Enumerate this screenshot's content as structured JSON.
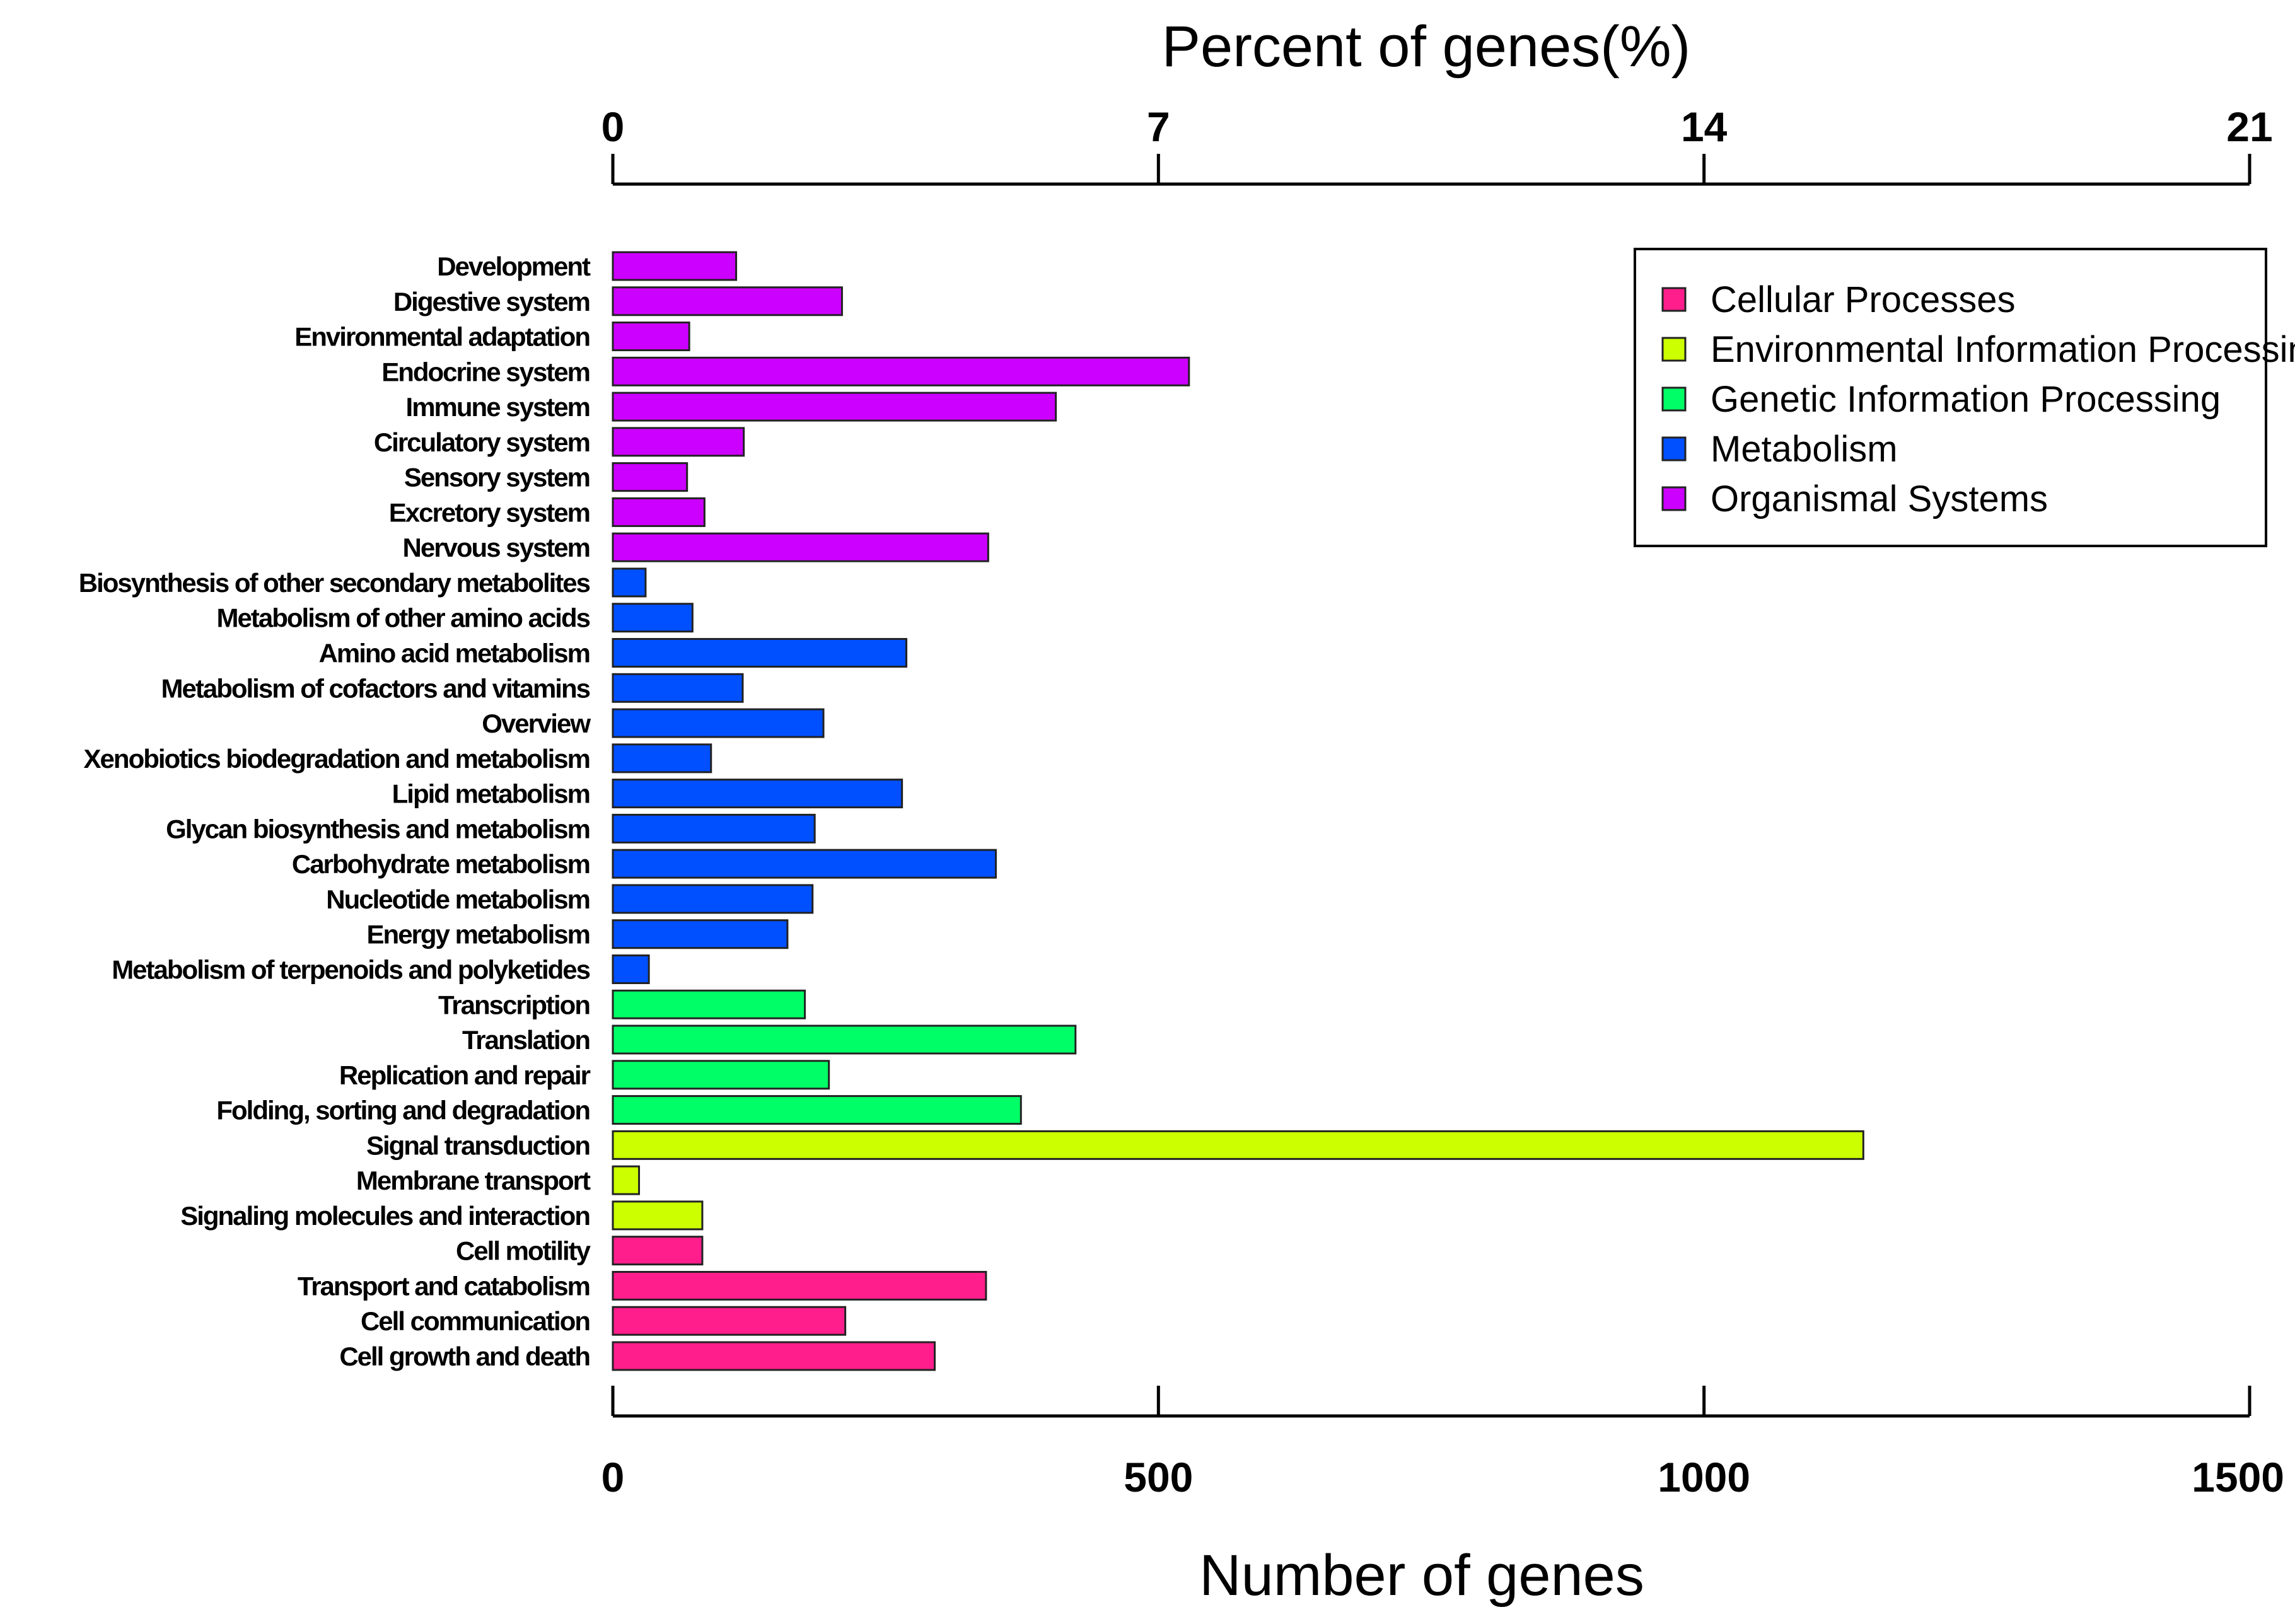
{
  "chart_data": {
    "type": "bar",
    "orientation": "horizontal",
    "title": "",
    "top_axis": {
      "title": "Percent of genes(%)",
      "ticks": [
        "0",
        "7",
        "14",
        "21"
      ],
      "range": [
        0,
        21
      ]
    },
    "bottom_axis": {
      "title": "Number of genes",
      "ticks": [
        "0",
        "500",
        "1000",
        "1500"
      ],
      "range": [
        0,
        1500
      ]
    },
    "legend": {
      "placement": "top-right",
      "entries": [
        {
          "name": "Cellular Processes",
          "color": "#ff1e8c"
        },
        {
          "name": "Environmental Information Processing",
          "color": "#ccff00"
        },
        {
          "name": "Genetic Information Processing",
          "color": "#00ff66"
        },
        {
          "name": "Metabolism",
          "color": "#0050ff"
        },
        {
          "name": "Organismal Systems",
          "color": "#cc00ff"
        }
      ]
    },
    "bars": [
      {
        "label": "Development",
        "value": 113,
        "group": "Organismal Systems"
      },
      {
        "label": "Digestive system",
        "value": 210,
        "group": "Organismal Systems"
      },
      {
        "label": "Environmental adaptation",
        "value": 70,
        "group": "Organismal Systems"
      },
      {
        "label": "Endocrine system",
        "value": 528,
        "group": "Organismal Systems"
      },
      {
        "label": "Immune system",
        "value": 406,
        "group": "Organismal Systems"
      },
      {
        "label": "Circulatory system",
        "value": 120,
        "group": "Organismal Systems"
      },
      {
        "label": "Sensory system",
        "value": 68,
        "group": "Organismal Systems"
      },
      {
        "label": "Excretory system",
        "value": 84,
        "group": "Organismal Systems"
      },
      {
        "label": "Nervous system",
        "value": 344,
        "group": "Organismal Systems"
      },
      {
        "label": "Biosynthesis of other secondary metabolites",
        "value": 30,
        "group": "Metabolism"
      },
      {
        "label": "Metabolism of other amino acids",
        "value": 73,
        "group": "Metabolism"
      },
      {
        "label": "Amino acid metabolism",
        "value": 269,
        "group": "Metabolism"
      },
      {
        "label": "Metabolism of cofactors and vitamins",
        "value": 119,
        "group": "Metabolism"
      },
      {
        "label": "Overview",
        "value": 193,
        "group": "Metabolism"
      },
      {
        "label": "Xenobiotics biodegradation and metabolism",
        "value": 90,
        "group": "Metabolism"
      },
      {
        "label": "Lipid metabolism",
        "value": 265,
        "group": "Metabolism"
      },
      {
        "label": "Glycan biosynthesis and metabolism",
        "value": 185,
        "group": "Metabolism"
      },
      {
        "label": "Carbohydrate metabolism",
        "value": 351,
        "group": "Metabolism"
      },
      {
        "label": "Nucleotide metabolism",
        "value": 183,
        "group": "Metabolism"
      },
      {
        "label": "Energy metabolism",
        "value": 160,
        "group": "Metabolism"
      },
      {
        "label": "Metabolism of terpenoids and polyketides",
        "value": 33,
        "group": "Metabolism"
      },
      {
        "label": "Transcription",
        "value": 176,
        "group": "Genetic Information Processing"
      },
      {
        "label": "Translation",
        "value": 424,
        "group": "Genetic Information Processing"
      },
      {
        "label": "Replication and repair",
        "value": 198,
        "group": "Genetic Information Processing"
      },
      {
        "label": "Folding, sorting and degradation",
        "value": 374,
        "group": "Genetic Information Processing"
      },
      {
        "label": "Signal transduction",
        "value": 1146,
        "group": "Environmental Information Processing"
      },
      {
        "label": "Membrane transport",
        "value": 24,
        "group": "Environmental Information Processing"
      },
      {
        "label": "Signaling molecules and interaction",
        "value": 82,
        "group": "Environmental Information Processing"
      },
      {
        "label": "Cell motility",
        "value": 82,
        "group": "Cellular Processes"
      },
      {
        "label": "Transport and catabolism",
        "value": 342,
        "group": "Cellular Processes"
      },
      {
        "label": "Cell communication",
        "value": 213,
        "group": "Cellular Processes"
      },
      {
        "label": "Cell growth and death",
        "value": 295,
        "group": "Cellular Processes"
      }
    ]
  }
}
